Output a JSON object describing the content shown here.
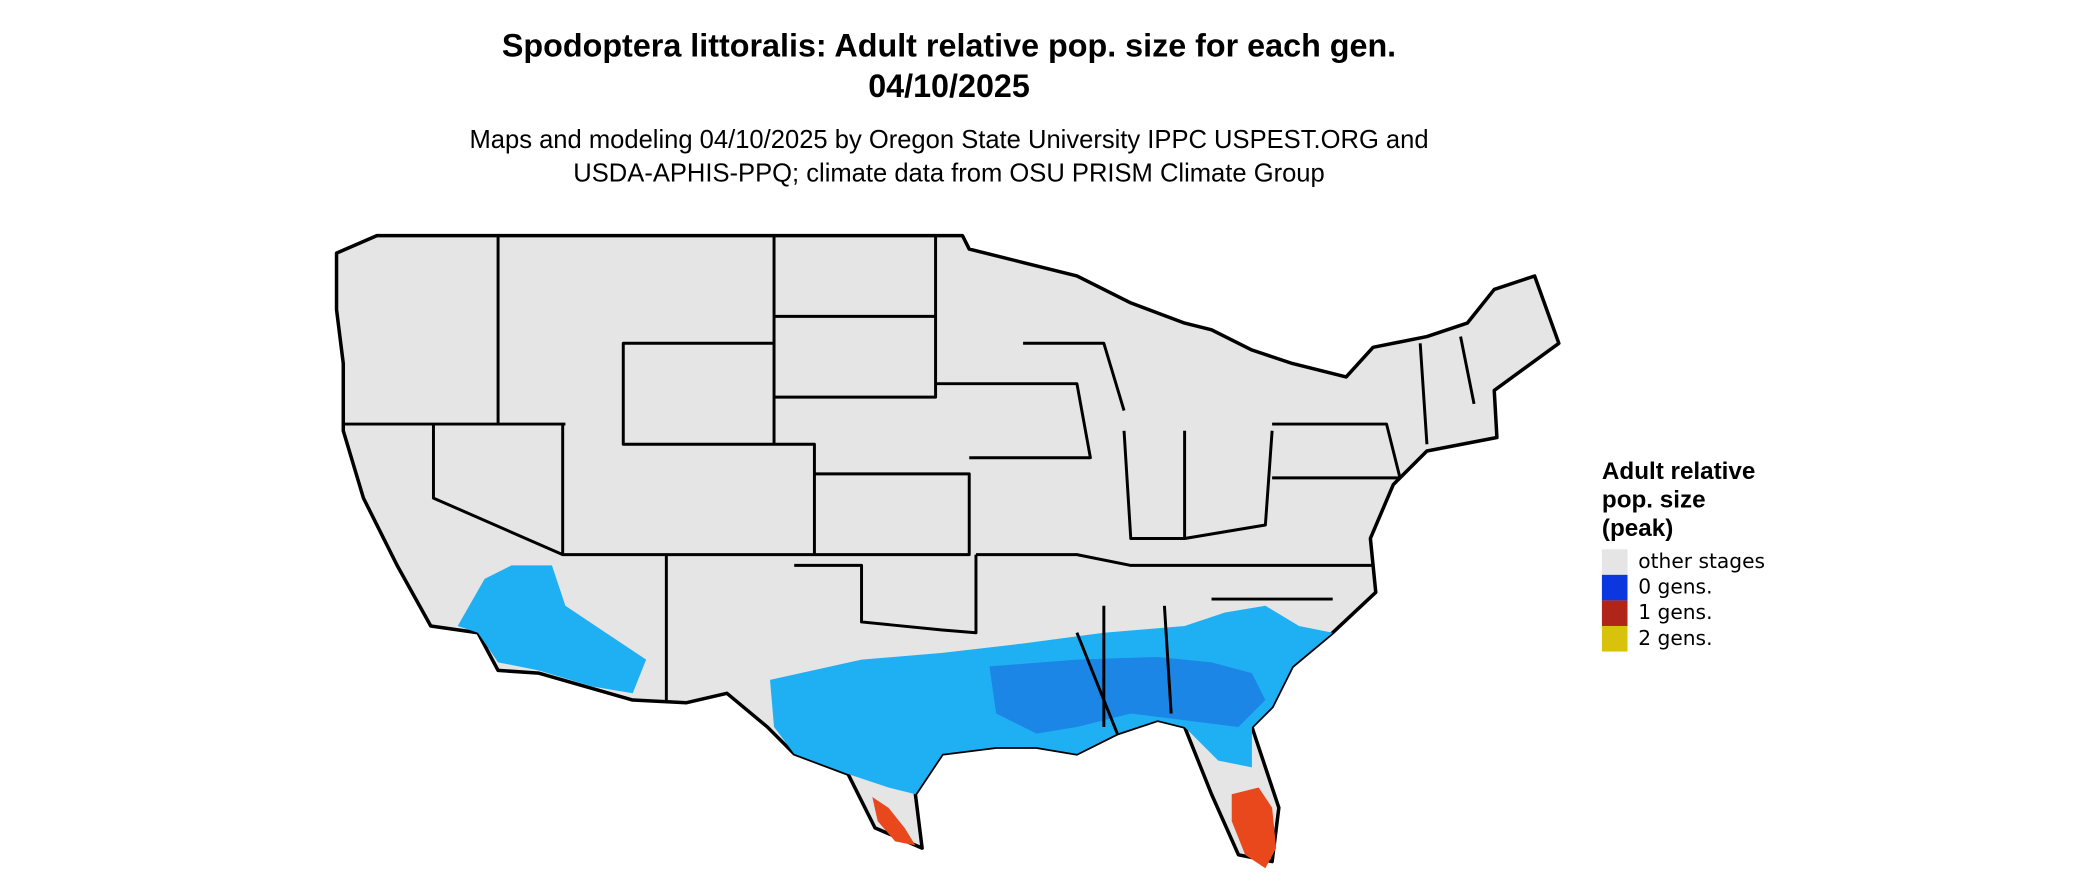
{
  "map": {
    "title_lines": [
      "Spodoptera littoralis: Adult relative pop. size for each gen.",
      "04/10/2025"
    ],
    "subtitle_lines": [
      "Maps and modeling 04/10/2025 by Oregon State University IPPC USPEST.ORG and",
      "USDA-APHIS-PPQ; climate data from OSU PRISM Climate Group"
    ],
    "legend": {
      "title_lines": [
        "Adult relative",
        "pop. size",
        "(peak)"
      ],
      "items": [
        {
          "label": "other stages",
          "color": "#e5e5e5"
        },
        {
          "label": "0 gens.",
          "color": "#0b36e0"
        },
        {
          "label": "1 gens.",
          "color": "#b0241a"
        },
        {
          "label": "2 gens.",
          "color": "#d9c20c"
        }
      ]
    }
  }
}
